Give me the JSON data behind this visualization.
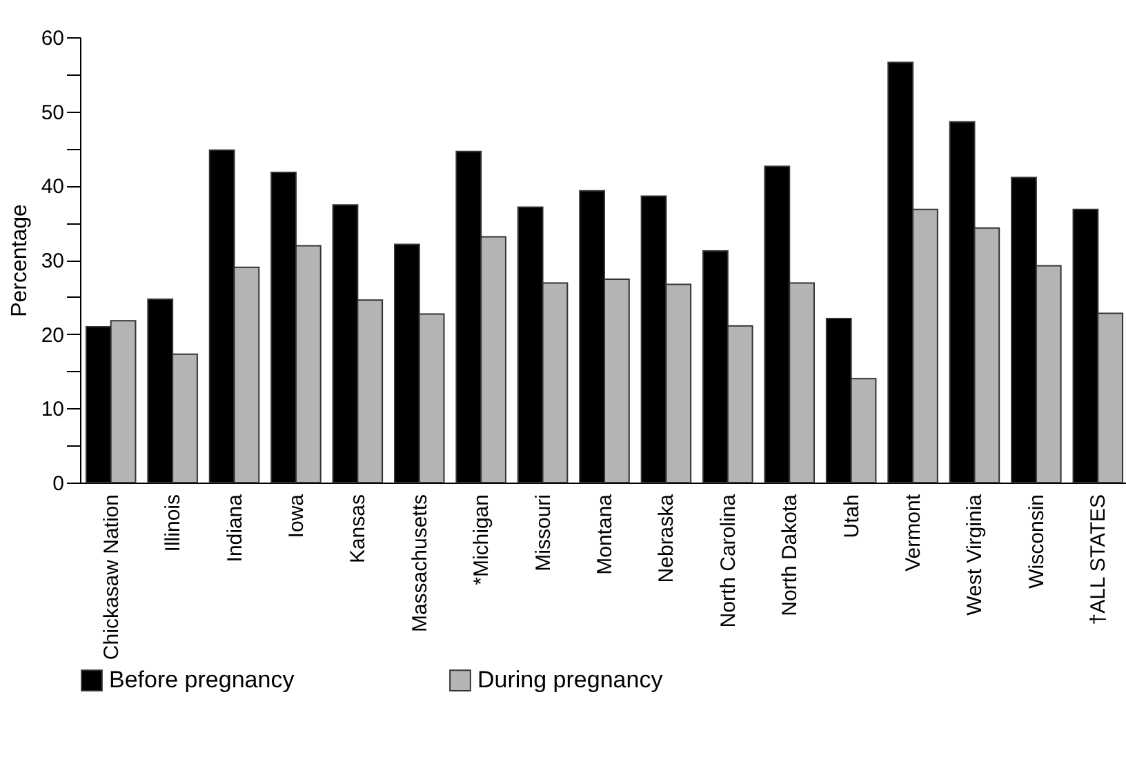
{
  "chart_data": {
    "type": "bar",
    "ylabel": "Percentage",
    "categories": [
      "Chickasaw Nation",
      "Illinois",
      "Indiana",
      "Iowa",
      "Kansas",
      "Massachusetts",
      "*Michigan",
      "Missouri",
      "Montana",
      "Nebraska",
      "North Carolina",
      "North Dakota",
      "Utah",
      "Vermont",
      "West Virginia",
      "Wisconsin",
      "†ALL STATES"
    ],
    "series": [
      {
        "name": "Before pregnancy",
        "color": "#000000",
        "values": [
          21,
          24.7,
          44.8,
          41.8,
          37.4,
          32.1,
          44.6,
          37.1,
          39.3,
          38.6,
          31.2,
          42.6,
          22.1,
          56.6,
          48.6,
          41.1,
          36.8
        ]
      },
      {
        "name": "During pregnancy",
        "color": "#b4b4b4",
        "values": [
          21.8,
          17.3,
          29,
          31.9,
          24.6,
          22.7,
          33.1,
          26.9,
          27.4,
          26.7,
          21.1,
          26.9,
          14,
          36.8,
          34.3,
          29.2,
          22.8
        ]
      }
    ],
    "ylim": [
      0,
      60
    ],
    "yticks": [
      0,
      {
        "value": 5,
        "label": null
      },
      10,
      {
        "value": 15,
        "label": null
      },
      20,
      {
        "value": 25,
        "label": null
      },
      30,
      {
        "value": 35,
        "label": null
      },
      40,
      {
        "value": 45,
        "label": null
      },
      50,
      {
        "value": 55,
        "label": null
      },
      60
    ],
    "grid": false,
    "legend": "bottom"
  }
}
